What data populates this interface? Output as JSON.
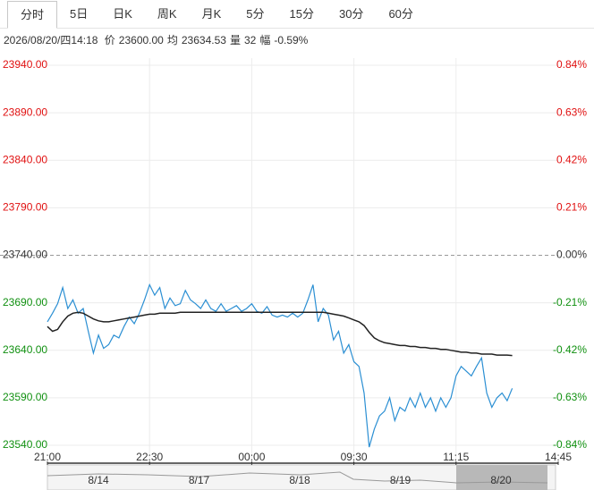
{
  "tabs": [
    "分时",
    "5日",
    "日K",
    "周K",
    "月K",
    "5分",
    "15分",
    "30分",
    "60分"
  ],
  "info": {
    "time": "2026/08/20/四14:18",
    "items": [
      {
        "label": "价",
        "value": "23600.00"
      },
      {
        "label": "均",
        "value": "23634.53"
      },
      {
        "label": "量",
        "value": "32"
      },
      {
        "label": "幅",
        "value": "-0.59%"
      }
    ]
  },
  "navigator": {
    "dates": [
      "8/14",
      "8/17",
      "8/18",
      "8/19",
      "8/20"
    ]
  },
  "chart_data": {
    "type": "line",
    "x": [
      0,
      1,
      2,
      3,
      4,
      5,
      6,
      7,
      8,
      9,
      10,
      11,
      12,
      13,
      14,
      15,
      16,
      17,
      18,
      19,
      20,
      21,
      22,
      23,
      24,
      25,
      26,
      27,
      28,
      29,
      30,
      31,
      32,
      33,
      34,
      35,
      36,
      37,
      38,
      39,
      40,
      41,
      42,
      43,
      44,
      45,
      46,
      47,
      48,
      49,
      50,
      51,
      52,
      53,
      54,
      55,
      56,
      57,
      58,
      59,
      60,
      61,
      62,
      63,
      64,
      65,
      66,
      67,
      68,
      69,
      70,
      71,
      72,
      73,
      74,
      75,
      76,
      77,
      78,
      79,
      80,
      81,
      82,
      83,
      84,
      85,
      86,
      87,
      88,
      89,
      90,
      91
    ],
    "xlim": [
      0,
      100
    ],
    "xticks": [
      {
        "value": 0,
        "label": "21:00"
      },
      {
        "value": 20,
        "label": "22:30"
      },
      {
        "value": 40,
        "label": "00:00"
      },
      {
        "value": 60,
        "label": "09:30"
      },
      {
        "value": 80,
        "label": "11:15"
      },
      {
        "value": 100,
        "label": "14:45"
      }
    ],
    "ylim": [
      23540,
      23940
    ],
    "yticks": [
      {
        "value": 23940,
        "label": "23940.00"
      },
      {
        "value": 23890,
        "label": "23890.00"
      },
      {
        "value": 23840,
        "label": "23840.00"
      },
      {
        "value": 23790,
        "label": "23790.00"
      },
      {
        "value": 23740,
        "label": "23740.00"
      },
      {
        "value": 23690,
        "label": "23690.00"
      },
      {
        "value": 23640,
        "label": "23640.00"
      },
      {
        "value": 23590,
        "label": "23590.00"
      },
      {
        "value": 23540,
        "label": "23540.00"
      }
    ],
    "y2lim": [
      -0.84,
      0.84
    ],
    "y2ticks": [
      {
        "value": 0.84,
        "label": "0.84%"
      },
      {
        "value": 0.63,
        "label": "0.63%"
      },
      {
        "value": 0.42,
        "label": "0.42%"
      },
      {
        "value": 0.21,
        "label": "0.21%"
      },
      {
        "value": 0,
        "label": "0.00%"
      },
      {
        "value": -0.21,
        "label": "-0.21%"
      },
      {
        "value": -0.42,
        "label": "-0.42%"
      },
      {
        "value": -0.63,
        "label": "-0.63%"
      },
      {
        "value": -0.84,
        "label": "-0.84%"
      }
    ],
    "up_color": "#e01010",
    "down_color": "#109010",
    "flat_color": "#333333",
    "grid": true,
    "series": [
      {
        "color": "#2b8fd3",
        "values": [
          23670,
          23679,
          23689,
          23706,
          23684,
          23693,
          23679,
          23684,
          23660,
          23637,
          23656,
          23642,
          23646,
          23656,
          23653,
          23665,
          23675,
          23668,
          23679,
          23693,
          23709,
          23698,
          23706,
          23684,
          23695,
          23687,
          23689,
          23703,
          23693,
          23689,
          23684,
          23693,
          23684,
          23681,
          23689,
          23681,
          23684,
          23687,
          23681,
          23684,
          23689,
          23681,
          23679,
          23686,
          23677,
          23675,
          23677,
          23675,
          23679,
          23675,
          23679,
          23693,
          23709,
          23670,
          23684,
          23677,
          23651,
          23660,
          23637,
          23646,
          23628,
          23623,
          23595,
          23538,
          23557,
          23571,
          23576,
          23590,
          23566,
          23580,
          23576,
          23590,
          23580,
          23595,
          23580,
          23590,
          23576,
          23590,
          23580,
          23590,
          23613,
          23623,
          23618,
          23613,
          23623,
          23632,
          23595,
          23580,
          23590,
          23595,
          23587,
          23600
        ]
      },
      {
        "color": "#222222",
        "values": [
          23665,
          23660,
          23662,
          23670,
          23676,
          23679,
          23680,
          23679,
          23676,
          23673,
          23671,
          23670,
          23670,
          23671,
          23672,
          23673,
          23674,
          23675,
          23676,
          23677,
          23678,
          23678,
          23679,
          23679,
          23679,
          23679,
          23680,
          23680,
          23680,
          23680,
          23680,
          23680,
          23680,
          23680,
          23680,
          23680,
          23680,
          23680,
          23680,
          23680,
          23680,
          23680,
          23680,
          23680,
          23680,
          23680,
          23680,
          23680,
          23680,
          23680,
          23680,
          23680,
          23680,
          23680,
          23680,
          23679,
          23678,
          23677,
          23676,
          23674,
          23672,
          23670,
          23666,
          23659,
          23653,
          23650,
          23648,
          23647,
          23646,
          23645,
          23645,
          23644,
          23644,
          23643,
          23643,
          23642,
          23642,
          23641,
          23641,
          23640,
          23639,
          23638,
          23638,
          23637,
          23637,
          23636,
          23636,
          23636,
          23635,
          23635,
          23635,
          23634.53
        ]
      }
    ]
  }
}
